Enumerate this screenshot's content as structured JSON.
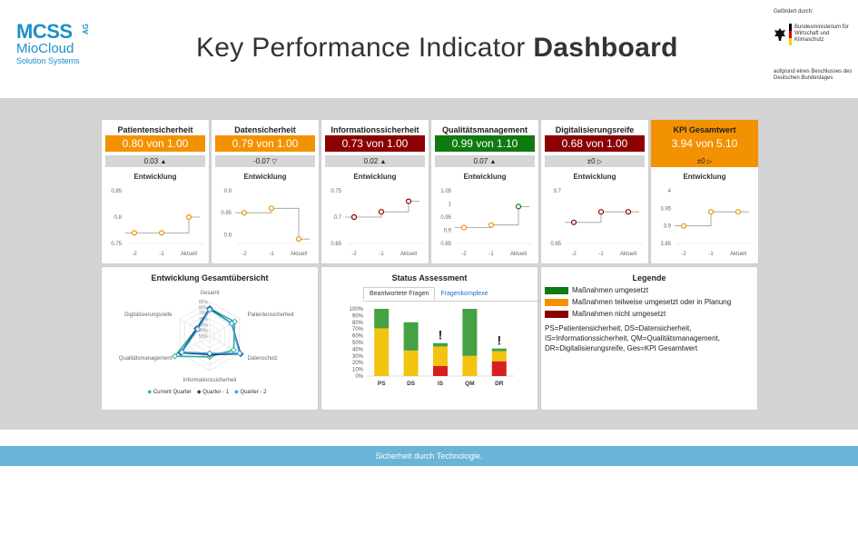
{
  "header": {
    "logo": {
      "line1": "MCSS",
      "ag": "AG",
      "line2": "MioCloud",
      "line3": "Solution Systems"
    },
    "title_light": "Key Performance Indicator",
    "title_bold": "Dashboard",
    "sponsor": {
      "intro": "Gefördert durch:",
      "ministry": "Bundesministerium für Wirtschaft und Klimaschutz",
      "basis": "aufgrund eines Beschlusses des Deutschen Bundestages"
    }
  },
  "kpis": [
    {
      "title": "Patientensicherheit",
      "value": "0.80 von 1.00",
      "delta": "0.03",
      "trend": "▲",
      "status_color": "#f39200",
      "development_label": "Entwicklung",
      "chart_data": {
        "type": "line",
        "x": [
          "-2",
          "-1",
          "Aktuell"
        ],
        "y": [
          0.77,
          0.77,
          0.8
        ],
        "yticks": [
          "0.85",
          "0.8",
          "0.75"
        ],
        "ylim": [
          0.75,
          0.85
        ],
        "color": "#f39200"
      }
    },
    {
      "title": "Datensicherheit",
      "value": "0.79 von 1.00",
      "delta": "-0.07",
      "trend": "▽",
      "status_color": "#f39200",
      "development_label": "Entwicklung",
      "chart_data": {
        "type": "line",
        "x": [
          "-2",
          "-1",
          "Aktuell"
        ],
        "y": [
          0.85,
          0.86,
          0.79
        ],
        "yticks": [
          "0.9",
          "0.85",
          "0.8"
        ],
        "ylim": [
          0.78,
          0.9
        ],
        "color": "#f39200"
      }
    },
    {
      "title": "Informationssicherheit",
      "value": "0.73 von 1.00",
      "delta": "0.02",
      "trend": "▲",
      "status_color": "#8b0000",
      "development_label": "Entwicklung",
      "chart_data": {
        "type": "line",
        "x": [
          "-2",
          "-1",
          "Aktuell"
        ],
        "y": [
          0.7,
          0.71,
          0.73
        ],
        "yticks": [
          "0.75",
          "0.7",
          "0.65"
        ],
        "ylim": [
          0.65,
          0.75
        ],
        "color": "#8b0000"
      }
    },
    {
      "title": "Qualitätsmanagement",
      "value": "0.99 von 1.10",
      "delta": "0.07",
      "trend": "▲",
      "status_color": "#0f7a0f",
      "development_label": "Entwicklung",
      "chart_data": {
        "type": "line",
        "x": [
          "-2",
          "-1",
          "Aktuell"
        ],
        "y": [
          0.91,
          0.92,
          0.99
        ],
        "yticks": [
          "1.05",
          "1",
          "0.95",
          "0.9",
          "0.85"
        ],
        "ylim": [
          0.85,
          1.05
        ],
        "color": "#f39200",
        "last_color": "#0f7a0f"
      }
    },
    {
      "title": "Digitalisierungsreife",
      "value": "0.68 von 1.00",
      "delta": "±0",
      "trend": "▷",
      "status_color": "#8b0000",
      "development_label": "Entwicklung",
      "chart_data": {
        "type": "line",
        "x": [
          "-2",
          "-1",
          "Aktuell"
        ],
        "y": [
          0.67,
          0.68,
          0.68
        ],
        "yticks": [
          "0.7",
          "0.65"
        ],
        "ylim": [
          0.65,
          0.7
        ],
        "color": "#8b0000"
      }
    },
    {
      "title": "KPI Gesamtwert",
      "value": "3.94 von 5.10",
      "delta": "±0",
      "trend": "▷",
      "status_color": "#f39200",
      "development_label": "Entwicklung",
      "highlight": true,
      "chart_data": {
        "type": "line",
        "x": [
          "-2",
          "-1",
          "Aktuell"
        ],
        "y": [
          3.9,
          3.94,
          3.94
        ],
        "yticks": [
          "4",
          "3.95",
          "3.9",
          "3.85"
        ],
        "ylim": [
          3.85,
          4.0
        ],
        "color": "#f39200"
      }
    }
  ],
  "radar": {
    "title": "Entwicklung Gesamtübersicht",
    "chart_data": {
      "type": "radar",
      "axes": [
        "Gesamt",
        "Patientensicherheit",
        "Datenschutz",
        "Informationssicherheit",
        "Qualitätsmanagement",
        "Digitalisierungsreife"
      ],
      "rings": [
        "85%",
        "80%",
        "75%",
        "70%",
        "65%",
        "60%",
        "55%"
      ],
      "series": [
        {
          "name": "Current Quarter",
          "color": "#2bb59a",
          "values": [
            0.79,
            0.8,
            0.79,
            0.73,
            0.9,
            0.68
          ]
        },
        {
          "name": "Quarter - 1",
          "color": "#1f3a6e",
          "values": [
            0.79,
            0.77,
            0.86,
            0.71,
            0.84,
            0.68
          ]
        },
        {
          "name": "Quarter - 2",
          "color": "#3aa0d8",
          "values": [
            0.78,
            0.77,
            0.85,
            0.7,
            0.83,
            0.67
          ]
        }
      ]
    }
  },
  "assessment": {
    "title": "Status Assessment",
    "tabs": [
      "Beantwortete Fragen",
      "Fragenkomplexe"
    ],
    "chart_data": {
      "type": "bar",
      "stacked": true,
      "categories": [
        "PS",
        "DS",
        "IS",
        "QM",
        "DR"
      ],
      "yticks": [
        "100%",
        "90%",
        "80%",
        "70%",
        "60%",
        "50%",
        "40%",
        "30%",
        "20%",
        "10%",
        "0%"
      ],
      "ylim": [
        0,
        100
      ],
      "series": [
        {
          "name": "Maßnahmen nicht umgesetzt",
          "color": "#d62020",
          "values": [
            0,
            0,
            15,
            0,
            22
          ]
        },
        {
          "name": "Maßnahmen teilweise umgesetzt oder in Planung",
          "color": "#f2c40f",
          "values": [
            71,
            38,
            29,
            30,
            15
          ]
        },
        {
          "name": "Maßnahmen umgesetzt",
          "color": "#44a144",
          "values": [
            29,
            42,
            5,
            70,
            4
          ]
        }
      ],
      "alerts": [
        "",
        "",
        "!",
        "",
        "!"
      ]
    }
  },
  "legend": {
    "title": "Legende",
    "items": [
      {
        "label": "Maßnahmen umgesetzt",
        "color": "#0f7a0f"
      },
      {
        "label": "Maßnahmen teilweise umgesetzt oder in Planung",
        "color": "#f39200"
      },
      {
        "label": "Maßnahmen nicht umgesetzt",
        "color": "#8b0000"
      }
    ],
    "abbr_lines": [
      "PS=Patientensicherheit, DS=Datensicherheit,",
      "IS=Informationssicherheit, QM=Qualitätsmanagement,",
      "DR=Digitalisierungsreife, Ges=KPI Gesamtwert"
    ]
  },
  "footer": {
    "text": "Sicherheit durch Technologie."
  }
}
